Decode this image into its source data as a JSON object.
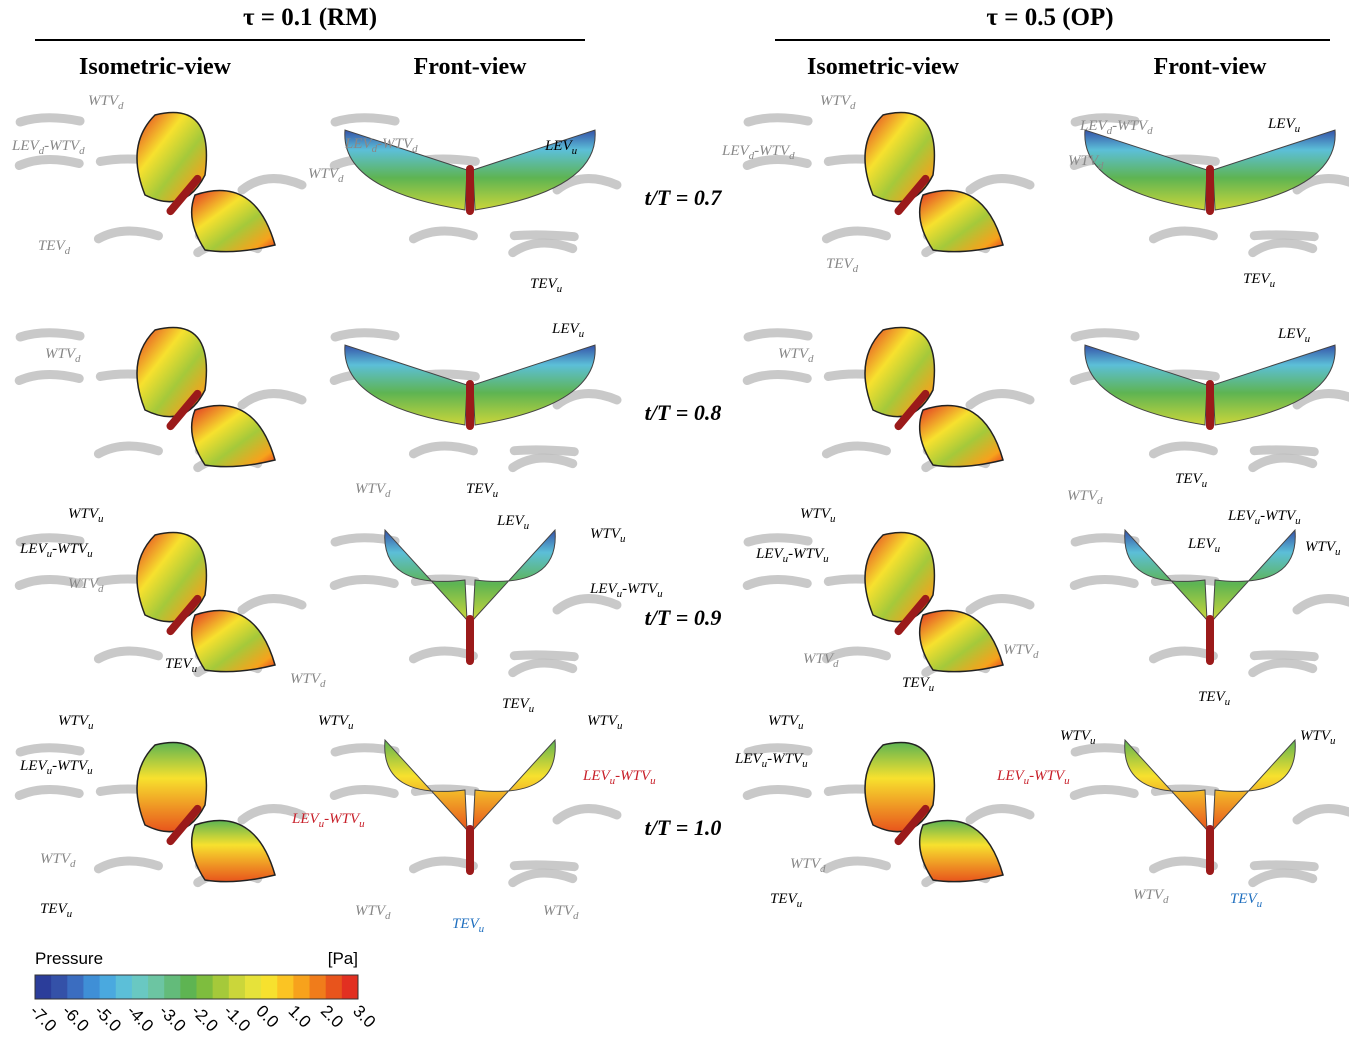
{
  "header": {
    "groups": [
      {
        "title": "τ = 0.1 (RM)",
        "views": [
          "Isometric-view",
          "Front-view"
        ]
      },
      {
        "title": "τ = 0.5 (OP)",
        "views": [
          "Isometric-view",
          "Front-view"
        ]
      }
    ]
  },
  "rows": [
    "t/T = 0.7",
    "t/T = 0.8",
    "t/T = 0.9",
    "t/T = 1.0"
  ],
  "panels": [
    {
      "labels": [
        {
          "parts": [
            "WTV",
            "d"
          ],
          "color": "gray"
        },
        {
          "parts": [
            "LEV",
            "d",
            "-WTV",
            "d"
          ],
          "color": "gray"
        },
        {
          "parts": [
            "TEV",
            "d"
          ],
          "color": "gray"
        }
      ]
    },
    {
      "labels": [
        {
          "parts": [
            "LEV",
            "d",
            "-WTV",
            "d"
          ],
          "color": "gray"
        },
        {
          "parts": [
            "WTV",
            "d"
          ],
          "color": "gray"
        },
        {
          "parts": [
            "LEV",
            "u"
          ],
          "color": "black"
        },
        {
          "parts": [
            "TEV",
            "u"
          ],
          "color": "black"
        }
      ]
    },
    {
      "labels": [
        {
          "parts": [
            "WTV",
            "d"
          ],
          "color": "gray"
        },
        {
          "parts": [
            "LEV",
            "d",
            "-WTV",
            "d"
          ],
          "color": "gray"
        },
        {
          "parts": [
            "TEV",
            "d"
          ],
          "color": "gray"
        }
      ]
    },
    {
      "labels": [
        {
          "parts": [
            "LEV",
            "d",
            "-WTV",
            "d"
          ],
          "color": "gray"
        },
        {
          "parts": [
            "WTV",
            "d"
          ],
          "color": "gray"
        },
        {
          "parts": [
            "LEV",
            "u"
          ],
          "color": "black"
        },
        {
          "parts": [
            "TEV",
            "u"
          ],
          "color": "black"
        }
      ]
    },
    {
      "labels": [
        {
          "parts": [
            "WTV",
            "d"
          ],
          "color": "gray"
        }
      ]
    },
    {
      "labels": [
        {
          "parts": [
            "LEV",
            "u"
          ],
          "color": "black"
        },
        {
          "parts": [
            "WTV",
            "d"
          ],
          "color": "gray"
        },
        {
          "parts": [
            "TEV",
            "u"
          ],
          "color": "black"
        }
      ]
    },
    {
      "labels": [
        {
          "parts": [
            "WTV",
            "d"
          ],
          "color": "gray"
        }
      ]
    },
    {
      "labels": [
        {
          "parts": [
            "LEV",
            "u"
          ],
          "color": "black"
        },
        {
          "parts": [
            "TEV",
            "u"
          ],
          "color": "black"
        },
        {
          "parts": [
            "WTV",
            "d"
          ],
          "color": "gray"
        }
      ]
    },
    {
      "labels": [
        {
          "parts": [
            "WTV",
            "u"
          ],
          "color": "black"
        },
        {
          "parts": [
            "LEV",
            "u",
            "-WTV",
            "u"
          ],
          "color": "black"
        },
        {
          "parts": [
            "WTV",
            "d"
          ],
          "color": "gray"
        },
        {
          "parts": [
            "TEV",
            "u"
          ],
          "color": "black"
        }
      ]
    },
    {
      "labels": [
        {
          "parts": [
            "LEV",
            "u"
          ],
          "color": "black"
        },
        {
          "parts": [
            "WTV",
            "u"
          ],
          "color": "black"
        },
        {
          "parts": [
            "LEV",
            "u",
            "-WTV",
            "u"
          ],
          "color": "black"
        },
        {
          "parts": [
            "WTV",
            "d"
          ],
          "color": "gray"
        },
        {
          "parts": [
            "TEV",
            "u"
          ],
          "color": "black"
        }
      ]
    },
    {
      "labels": [
        {
          "parts": [
            "WTV",
            "u"
          ],
          "color": "black"
        },
        {
          "parts": [
            "LEV",
            "u",
            "-WTV",
            "u"
          ],
          "color": "black"
        },
        {
          "parts": [
            "WTV",
            "d"
          ],
          "color": "gray"
        },
        {
          "parts": [
            "TEV",
            "u"
          ],
          "color": "black"
        }
      ]
    },
    {
      "labels": [
        {
          "parts": [
            "LEV",
            "u",
            "-WTV",
            "u"
          ],
          "color": "black"
        },
        {
          "parts": [
            "LEV",
            "u"
          ],
          "color": "black"
        },
        {
          "parts": [
            "WTV",
            "u"
          ],
          "color": "black"
        },
        {
          "parts": [
            "WTV",
            "d"
          ],
          "color": "gray"
        },
        {
          "parts": [
            "TEV",
            "u"
          ],
          "color": "black"
        }
      ]
    },
    {
      "labels": [
        {
          "parts": [
            "WTV",
            "u"
          ],
          "color": "black"
        },
        {
          "parts": [
            "LEV",
            "u",
            "-WTV",
            "u"
          ],
          "color": "black"
        },
        {
          "parts": [
            "WTV",
            "d"
          ],
          "color": "gray"
        },
        {
          "parts": [
            "TEV",
            "u"
          ],
          "color": "black"
        }
      ]
    },
    {
      "labels": [
        {
          "parts": [
            "WTV",
            "u"
          ],
          "color": "black"
        },
        {
          "parts": [
            "WTV",
            "u"
          ],
          "color": "black"
        },
        {
          "parts": [
            "LEV",
            "u",
            "-WTV",
            "u"
          ],
          "color": "#c8202a"
        },
        {
          "parts": [
            "LEV",
            "u",
            "-WTV",
            "u"
          ],
          "color": "#c8202a"
        },
        {
          "parts": [
            "WTV",
            "d"
          ],
          "color": "gray"
        },
        {
          "parts": [
            "TEV",
            "u"
          ],
          "color": "#1f6fbf"
        },
        {
          "parts": [
            "WTV",
            "d"
          ],
          "color": "gray"
        }
      ]
    },
    {
      "labels": [
        {
          "parts": [
            "WTV",
            "u"
          ],
          "color": "black"
        },
        {
          "parts": [
            "LEV",
            "u",
            "-WTV",
            "u"
          ],
          "color": "black"
        },
        {
          "parts": [
            "WTV",
            "d"
          ],
          "color": "gray"
        },
        {
          "parts": [
            "TEV",
            "u"
          ],
          "color": "black"
        }
      ]
    },
    {
      "labels": [
        {
          "parts": [
            "WTV",
            "u"
          ],
          "color": "black"
        },
        {
          "parts": [
            "WTV",
            "u"
          ],
          "color": "black"
        },
        {
          "parts": [
            "LEV",
            "u",
            "-WTV",
            "u"
          ],
          "color": "#c8202a"
        },
        {
          "parts": [
            "WTV",
            "d"
          ],
          "color": "gray"
        },
        {
          "parts": [
            "TEV",
            "u"
          ],
          "color": "#1f6fbf"
        }
      ]
    }
  ],
  "colorbar": {
    "title": "Pressure",
    "unit": "[Pa]",
    "ticks": [
      "-7.0",
      "-6.0",
      "-5.0",
      "-4.0",
      "-3.0",
      "-2.0",
      "-1.0",
      "0.0",
      "1.0",
      "2.0",
      "3.0"
    ],
    "colors": [
      "#2b3d9a",
      "#3451a8",
      "#3b6dc0",
      "#3f8fd6",
      "#4aa9df",
      "#5cbfd8",
      "#69c8c2",
      "#6cc5a2",
      "#63bb7a",
      "#5eb452",
      "#7ebd3e",
      "#a5c93a",
      "#cbd63a",
      "#e6e23a",
      "#f7e12e",
      "#fbc423",
      "#f7a21c",
      "#f07c1b",
      "#e8541c",
      "#e23021"
    ]
  }
}
